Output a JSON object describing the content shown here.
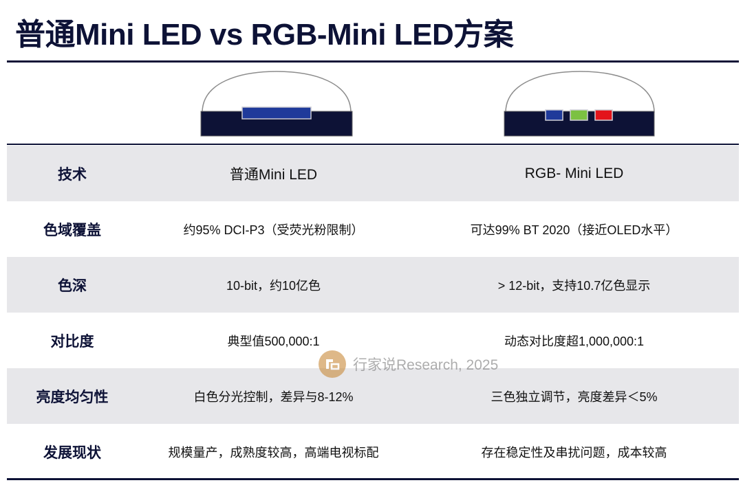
{
  "title": "普通Mini LED vs RGB-Mini LED方案",
  "colors": {
    "navy": "#0d1236",
    "blue_chip": "#1f3a9a",
    "green_chip": "#7cc142",
    "red_chip": "#e3141b",
    "row_shade": "#e7e7ea"
  },
  "table": {
    "rows": [
      {
        "label": "技术",
        "standard": "普通Mini LED",
        "rgb": "RGB- Mini LED"
      },
      {
        "label": "色域覆盖",
        "standard": "约95% DCI-P3（受荧光粉限制）",
        "rgb": "可达99% BT 2020（接近OLED水平）"
      },
      {
        "label": "色深",
        "standard": "10-bit，约10亿色",
        "rgb": "> 12-bit，支持10.7亿色显示"
      },
      {
        "label": "对比度",
        "standard": "典型值500,000:1",
        "rgb": "动态对比度超1,000,000:1"
      },
      {
        "label": "亮度均匀性",
        "standard": "白色分光控制，差异与8-12%",
        "rgb": "三色独立调节，亮度差异＜5%"
      },
      {
        "label": "发展现状",
        "standard": "规模量产，成熟度较高，高端电视标配",
        "rgb": "存在稳定性及串扰问题，成本较高"
      }
    ]
  },
  "watermark": {
    "text": "行家说Research, 2025",
    "icon": "brand-logo-icon"
  }
}
